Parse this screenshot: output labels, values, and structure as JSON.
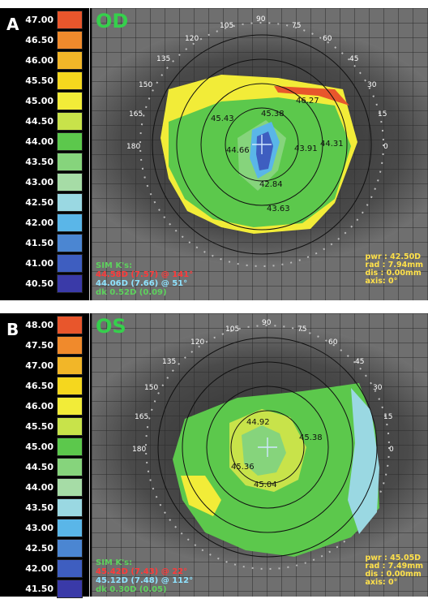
{
  "panels": [
    {
      "letter": "A",
      "eye": "OD",
      "scale": [
        {
          "value": "47.00",
          "color": "#e8562c"
        },
        {
          "value": "46.50",
          "color": "#f08a2c"
        },
        {
          "value": "46.00",
          "color": "#f2b628"
        },
        {
          "value": "45.50",
          "color": "#f5d71e"
        },
        {
          "value": "45.00",
          "color": "#f2ec38"
        },
        {
          "value": "44.50",
          "color": "#c8e34a"
        },
        {
          "value": "44.00",
          "color": "#5cc84c"
        },
        {
          "value": "43.50",
          "color": "#86d47c"
        },
        {
          "value": "43.00",
          "color": "#a6dca6"
        },
        {
          "value": "42.50",
          "color": "#9ad8e2"
        },
        {
          "value": "42.00",
          "color": "#5ab6e8"
        },
        {
          "value": "41.50",
          "color": "#4b86d2"
        },
        {
          "value": "41.00",
          "color": "#3e5ec0"
        },
        {
          "value": "40.50",
          "color": "#3a3aa8"
        }
      ],
      "angles": [
        "90",
        "105",
        "75",
        "120",
        "60",
        "135",
        "45",
        "150",
        "30",
        "165",
        "15",
        "180",
        "0"
      ],
      "values": [
        "45.43",
        "45.38",
        "46.27",
        "44.66",
        "43.91",
        "44.31",
        "42.84",
        "43.63"
      ],
      "simk": {
        "title": "SIM K's:",
        "k1": "44.58D (7.57) @ 141°",
        "k2": "44.06D (7.66) @ 51°",
        "dk": "dk 0.52D (0.09)"
      },
      "info": {
        "pwr": "pwr : 42.50D",
        "rad": "rad : 7.94mm",
        "dis": "dis : 0.00mm",
        "axis": "axis:  0°"
      }
    },
    {
      "letter": "B",
      "eye": "OS",
      "scale": [
        {
          "value": "48.00",
          "color": "#e8562c"
        },
        {
          "value": "47.50",
          "color": "#f08a2c"
        },
        {
          "value": "47.00",
          "color": "#f2b628"
        },
        {
          "value": "46.50",
          "color": "#f5d71e"
        },
        {
          "value": "46.00",
          "color": "#f2ec38"
        },
        {
          "value": "45.50",
          "color": "#c8e34a"
        },
        {
          "value": "45.00",
          "color": "#5cc84c"
        },
        {
          "value": "44.50",
          "color": "#86d47c"
        },
        {
          "value": "44.00",
          "color": "#a6dca6"
        },
        {
          "value": "43.50",
          "color": "#9ad8e2"
        },
        {
          "value": "43.00",
          "color": "#5ab6e8"
        },
        {
          "value": "42.50",
          "color": "#4b86d2"
        },
        {
          "value": "42.00",
          "color": "#3e5ec0"
        },
        {
          "value": "41.50",
          "color": "#3a3aa8"
        }
      ],
      "angles": [
        "90",
        "105",
        "75",
        "120",
        "60",
        "135",
        "45",
        "150",
        "30",
        "165",
        "15",
        "180",
        "0"
      ],
      "values": [
        "44.92",
        "45.38",
        "45.36",
        "45.04"
      ],
      "simk": {
        "title": "SIM K's:",
        "k1": "45.42D (7.43) @ 22°",
        "k2": "45.12D (7.48) @ 112°",
        "dk": "dk 0.30D (0.05)"
      },
      "info": {
        "pwr": "pwr : 45.05D",
        "rad": "rad : 7.49mm",
        "dis": "dis : 0.00mm",
        "axis": "axis:  0°"
      }
    }
  ]
}
